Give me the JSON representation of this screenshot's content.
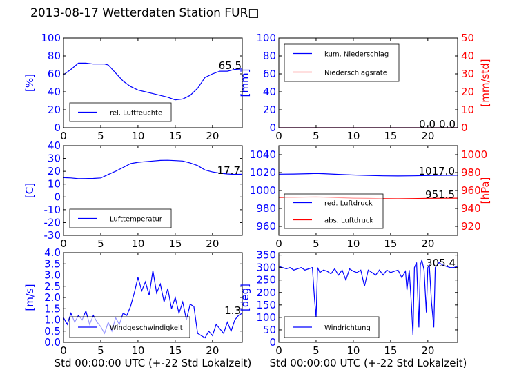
{
  "figure": {
    "title": "2013-08-17 Wetterdaten Station FUR□",
    "colors": {
      "blue": "#0000ff",
      "red": "#ff0000",
      "axis": "#000000"
    }
  },
  "chart_data": [
    {
      "type": "line",
      "title": "",
      "xlabel": "",
      "ylabel": "[%]",
      "xlim": [
        0,
        24
      ],
      "ylim": [
        0,
        100
      ],
      "xticks": [
        0,
        5,
        10,
        15,
        20
      ],
      "yticks": [
        0,
        20,
        40,
        60,
        80,
        100
      ],
      "series": [
        {
          "name": "rel. Luftfeuchte",
          "color": "#0000ff",
          "x": [
            0,
            1,
            2,
            3,
            4,
            5,
            5.5,
            6,
            7,
            8,
            9,
            10,
            11,
            12,
            13,
            14,
            15,
            16,
            17,
            18,
            19,
            20,
            21,
            22,
            23,
            24
          ],
          "y": [
            59,
            65,
            72,
            72,
            71,
            71,
            71,
            70,
            61,
            52,
            46,
            42,
            40,
            38,
            36,
            34,
            31,
            32,
            36,
            44,
            56,
            60,
            63,
            63,
            65,
            65.5
          ]
        }
      ],
      "annotations": [
        "65.5"
      ],
      "legend": "lower-left"
    },
    {
      "type": "line",
      "title": "",
      "xlabel": "",
      "ylabel": "[mm]",
      "ylabel_right": "[mm/std]",
      "xlim": [
        0,
        24
      ],
      "ylim": [
        0,
        100
      ],
      "ylim_right": [
        0,
        50
      ],
      "xticks": [
        0,
        5,
        10,
        15,
        20
      ],
      "yticks": [
        0,
        20,
        40,
        60,
        80,
        100
      ],
      "yticks_right": [
        0,
        10,
        20,
        30,
        40,
        50
      ],
      "series": [
        {
          "name": "kum. Niederschlag",
          "color": "#0000ff",
          "axis": "left",
          "x": [
            0,
            24
          ],
          "y": [
            0,
            0
          ]
        },
        {
          "name": "Niederschlagsrate",
          "color": "#ff0000",
          "axis": "right",
          "x": [
            0,
            24
          ],
          "y": [
            0,
            0
          ]
        }
      ],
      "annotations": [
        "0.0",
        "0.0"
      ],
      "legend": "upper-left"
    },
    {
      "type": "line",
      "title": "",
      "xlabel": "",
      "ylabel": "[C]",
      "xlim": [
        0,
        24
      ],
      "ylim": [
        -30,
        40
      ],
      "xticks": [
        0,
        5,
        10,
        15,
        20
      ],
      "yticks": [
        -30,
        -20,
        -10,
        0,
        10,
        20,
        30,
        40
      ],
      "series": [
        {
          "name": "Lufttemperatur",
          "color": "#0000ff",
          "x": [
            0,
            1,
            2,
            3,
            4,
            5,
            6,
            7,
            8,
            9,
            10,
            11,
            12,
            13,
            14,
            15,
            16,
            17,
            18,
            19,
            20,
            21,
            22,
            23,
            24
          ],
          "y": [
            15,
            14.8,
            14.2,
            14.3,
            14.4,
            14.8,
            17.5,
            20,
            23,
            26,
            27,
            27.5,
            28,
            28.5,
            28.6,
            28.3,
            28,
            26.5,
            24.5,
            21,
            19.5,
            18.5,
            17.9,
            17.6,
            17.7
          ]
        }
      ],
      "annotations": [
        "17.7"
      ],
      "legend": "lower-left"
    },
    {
      "type": "line",
      "title": "",
      "xlabel": "",
      "ylabel": "",
      "ylabel_right": "[hPa]",
      "xlim": [
        0,
        24
      ],
      "ylim": [
        950,
        1050
      ],
      "ylim_right": [
        910,
        1010
      ],
      "xticks": [
        0,
        5,
        10,
        15,
        20
      ],
      "yticks": [
        960,
        980,
        1000,
        1020,
        1040
      ],
      "yticks_right": [
        920,
        940,
        960,
        980,
        1000
      ],
      "series": [
        {
          "name": "red. Luftdruck",
          "color": "#0000ff",
          "axis": "left",
          "x": [
            0,
            2,
            4,
            5,
            6,
            8,
            10,
            12,
            14,
            16,
            18,
            20,
            22,
            24
          ],
          "y": [
            1018.2,
            1018.4,
            1018.8,
            1019,
            1018.8,
            1018,
            1017.3,
            1016.8,
            1016.4,
            1016.2,
            1016.4,
            1016.7,
            1016.9,
            1017.0
          ]
        },
        {
          "name": "abs. Luftdruck",
          "color": "#ff0000",
          "axis": "right",
          "x": [
            0,
            2,
            4,
            5,
            6,
            8,
            10,
            12,
            14,
            16,
            18,
            20,
            22,
            24
          ],
          "y": [
            952.3,
            952.4,
            952.7,
            952.8,
            952.6,
            952.0,
            951.5,
            951.2,
            950.9,
            950.8,
            951.0,
            951.3,
            951.4,
            951.5
          ]
        }
      ],
      "annotations": [
        "1017.0",
        "951.5"
      ],
      "legend": "lower-left"
    },
    {
      "type": "line",
      "title": "",
      "xlabel": "Std 00:00:00 UTC (+-22 Std Lokalzeit)",
      "ylabel": "[m/s]",
      "xlim": [
        0,
        24
      ],
      "ylim": [
        0,
        4
      ],
      "xticks": [
        0,
        5,
        10,
        15,
        20
      ],
      "yticks": [
        0.0,
        0.5,
        1.0,
        1.5,
        2.0,
        2.5,
        3.0,
        3.5,
        4.0
      ],
      "series": [
        {
          "name": "Windgeschwindigkeit",
          "color": "#0000ff",
          "x": [
            0,
            0.5,
            1,
            1.5,
            2,
            2.5,
            3,
            3.5,
            4,
            4.5,
            5,
            5.5,
            6,
            6.5,
            7,
            7.5,
            8,
            8.5,
            9,
            9.5,
            10,
            10.5,
            11,
            11.5,
            12,
            12.5,
            13,
            13.5,
            14,
            14.5,
            15,
            15.5,
            16,
            16.5,
            17,
            17.5,
            18,
            18.5,
            19,
            19.5,
            20,
            20.5,
            21,
            21.5,
            22,
            22.5,
            23,
            23.5,
            24
          ],
          "y": [
            1.1,
            0.8,
            1.3,
            0.9,
            1.2,
            1.0,
            1.4,
            0.8,
            1.2,
            0.9,
            0.7,
            0.4,
            0.9,
            0.5,
            1.1,
            0.8,
            1.3,
            1.2,
            1.6,
            2.2,
            2.9,
            2.3,
            2.7,
            2.1,
            3.2,
            2.2,
            2.6,
            1.8,
            2.4,
            1.5,
            2.0,
            1.3,
            1.8,
            1.0,
            1.7,
            1.6,
            0.4,
            0.3,
            0.2,
            0.5,
            0.3,
            0.8,
            0.6,
            0.4,
            0.9,
            0.5,
            1.0,
            1.2,
            1.3
          ]
        }
      ],
      "annotations": [
        "1.3"
      ],
      "legend": "lower-left"
    },
    {
      "type": "line",
      "title": "",
      "xlabel": "Std 00:00:00 UTC (+-22 Std Lokalzeit)",
      "ylabel": "[deg]",
      "xlim": [
        0,
        24
      ],
      "ylim": [
        0,
        360
      ],
      "xticks": [
        0,
        5,
        10,
        15,
        20
      ],
      "yticks": [
        0,
        50,
        100,
        150,
        200,
        250,
        300,
        350
      ],
      "series": [
        {
          "name": "Windrichtung",
          "color": "#0000ff",
          "x": [
            0,
            0.5,
            1,
            1.5,
            2,
            2.5,
            3,
            3.5,
            4,
            4.5,
            4.8,
            5,
            5.2,
            5.5,
            6,
            6.5,
            7,
            7.5,
            8,
            8.5,
            9,
            9.5,
            10,
            10.5,
            11,
            11.5,
            12,
            12.5,
            13,
            13.5,
            14,
            14.5,
            15,
            15.5,
            16,
            16.5,
            17,
            17.2,
            17.5,
            17.8,
            18,
            18.2,
            18.5,
            18.8,
            19,
            19.2,
            19.5,
            19.8,
            20,
            20.2,
            20.5,
            20.8,
            21,
            21.5,
            22,
            22.5,
            23,
            23.5,
            24
          ],
          "y": [
            305,
            300,
            295,
            300,
            290,
            295,
            300,
            290,
            295,
            300,
            170,
            100,
            300,
            280,
            290,
            285,
            275,
            295,
            270,
            290,
            250,
            295,
            285,
            280,
            290,
            225,
            290,
            280,
            270,
            290,
            270,
            290,
            280,
            285,
            290,
            260,
            285,
            210,
            290,
            150,
            30,
            300,
            320,
            60,
            310,
            330,
            290,
            120,
            300,
            310,
            160,
            60,
            300,
            320,
            310,
            305,
            300,
            300,
            305.4
          ]
        }
      ],
      "annotations": [
        "305.4"
      ],
      "legend": "lower-left"
    }
  ]
}
